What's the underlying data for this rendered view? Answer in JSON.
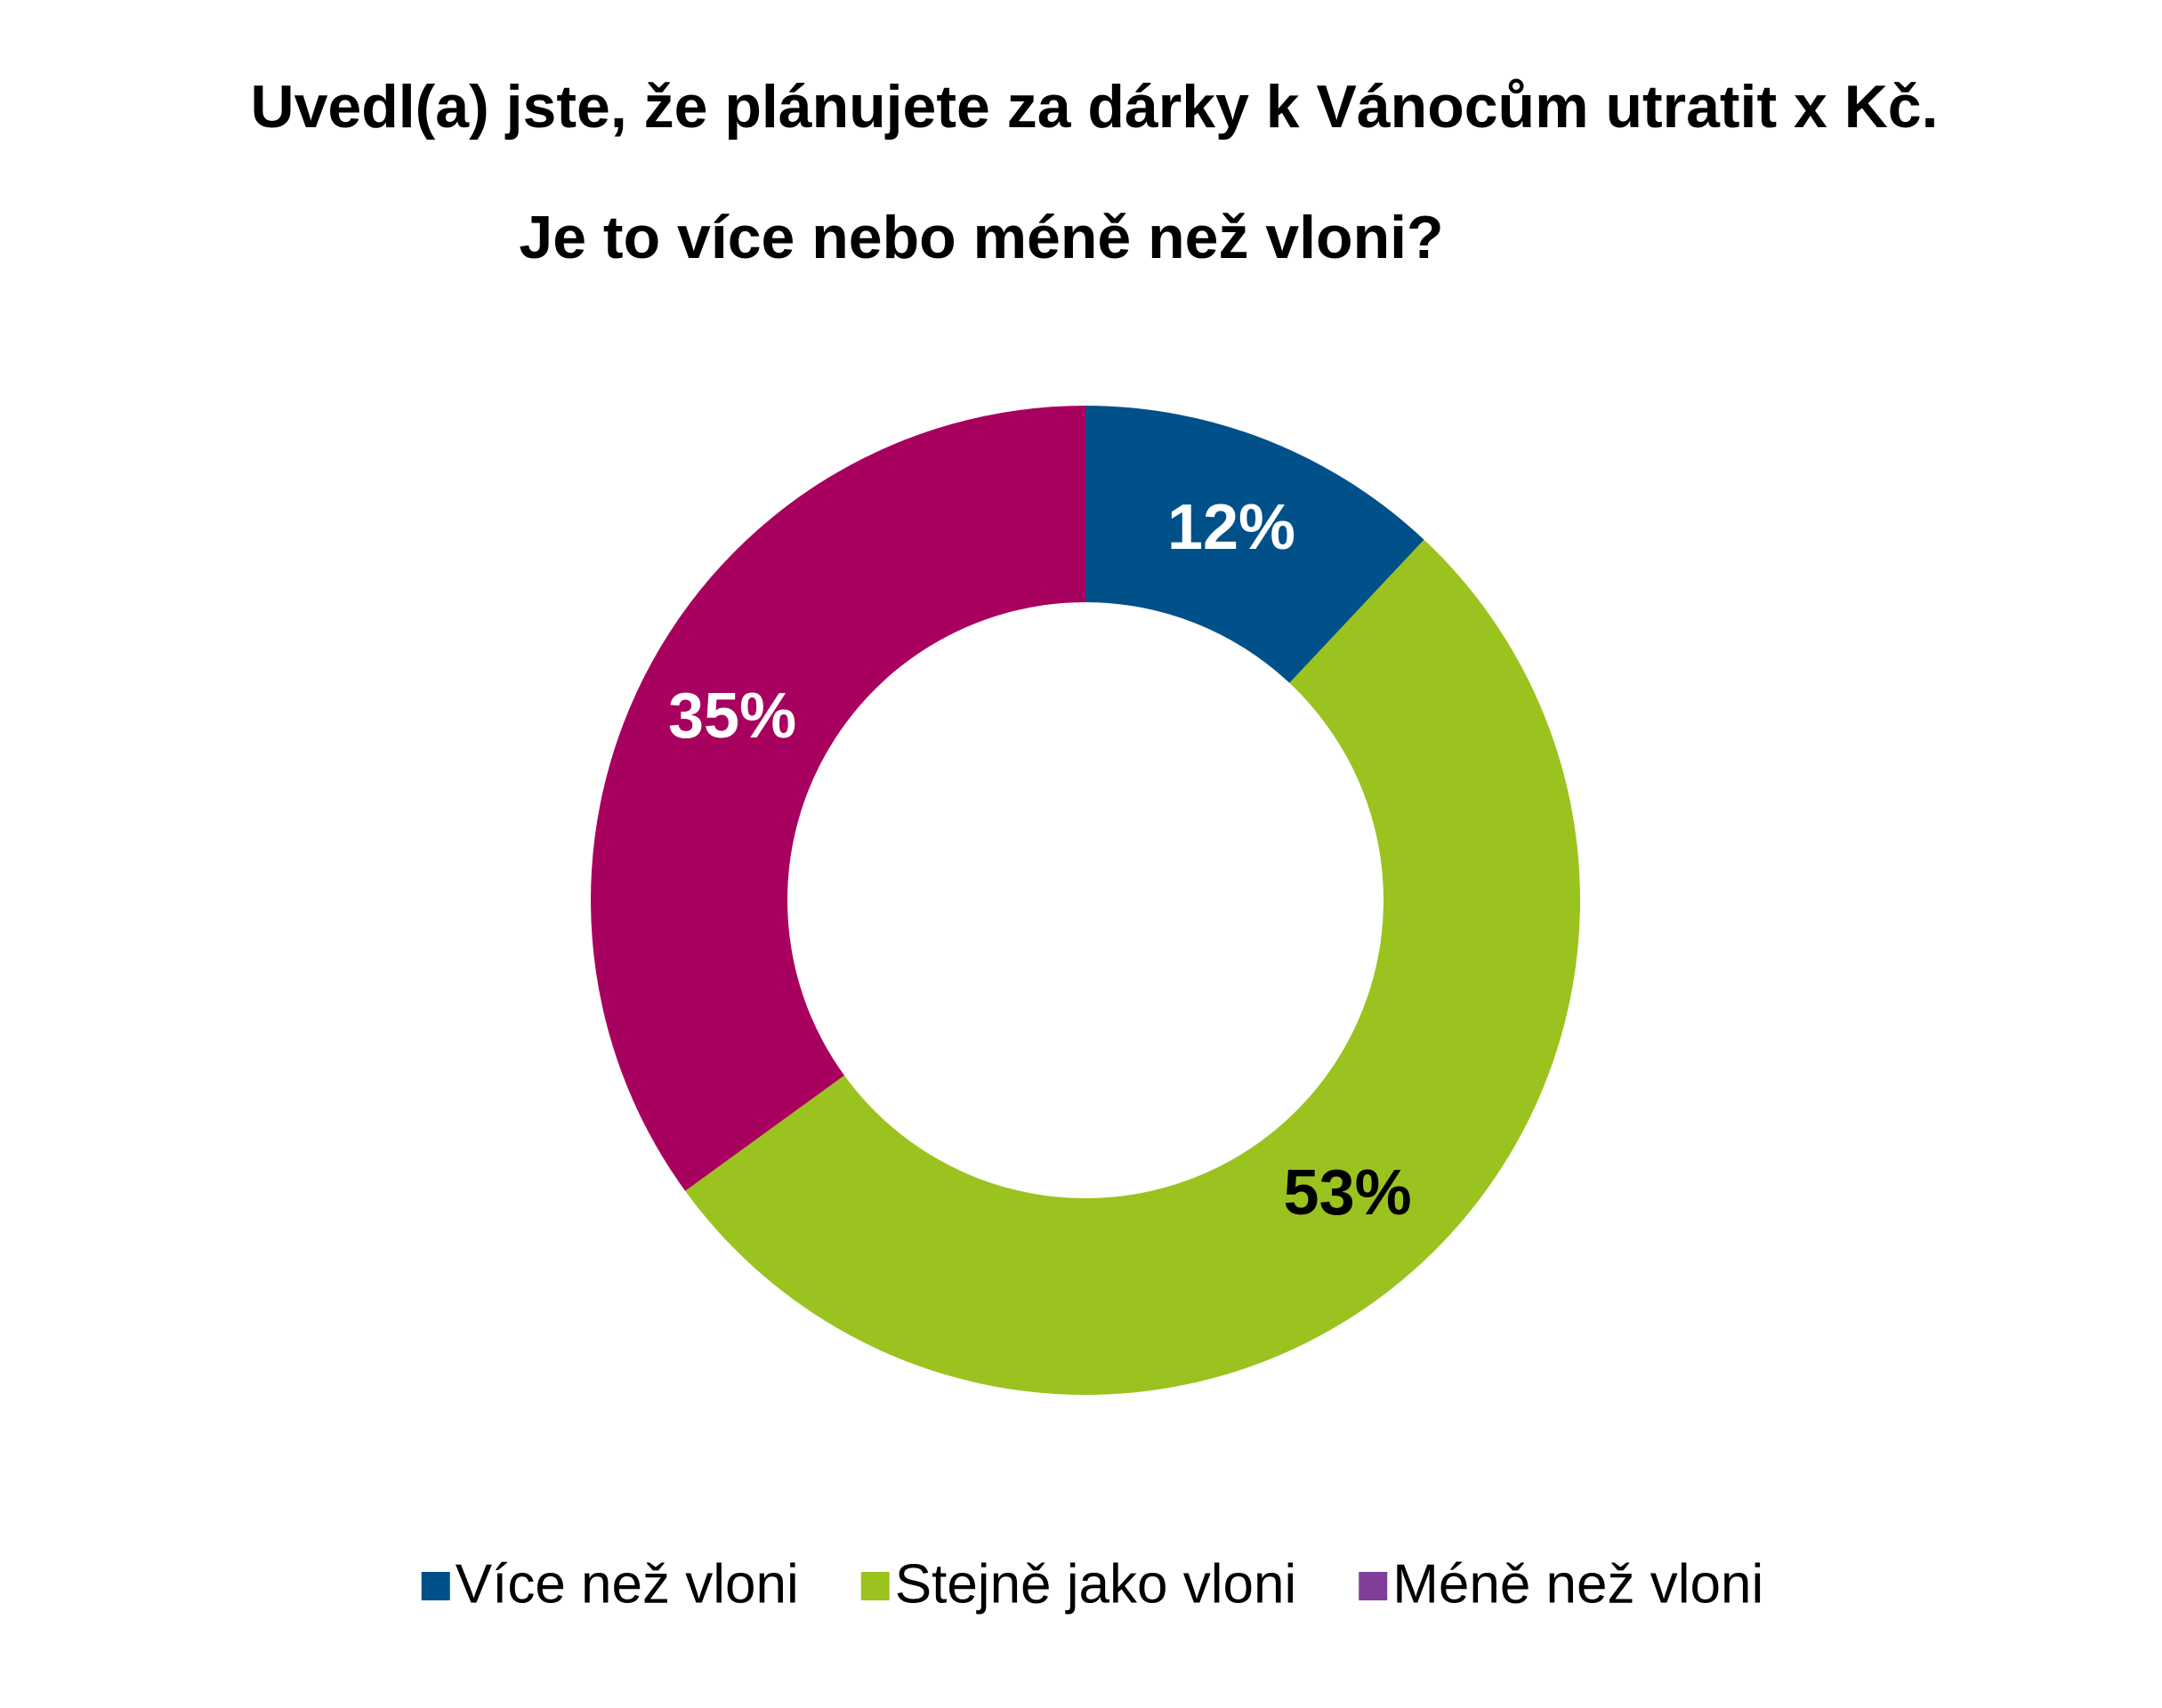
{
  "chart_data": {
    "type": "donut",
    "title": [
      "Uvedl(a) jste, že plánujete za dárky k Vánocům utratit x Kč.",
      "Je to více nebo méně než vloni?"
    ],
    "categories": [
      "Více než vloni",
      "Stejně jako vloni",
      "Méně než vloni"
    ],
    "values": [
      12,
      53,
      35
    ],
    "value_labels": [
      "12%",
      "53%",
      "35%"
    ],
    "colors": [
      "#00508a",
      "#9bc31f",
      "#a8005f"
    ],
    "label_colors": [
      "#ffffff",
      "#000000",
      "#ffffff"
    ],
    "legend_colors": [
      "#00508a",
      "#9bc31f",
      "#7f3f98"
    ],
    "legend": "bottom"
  }
}
